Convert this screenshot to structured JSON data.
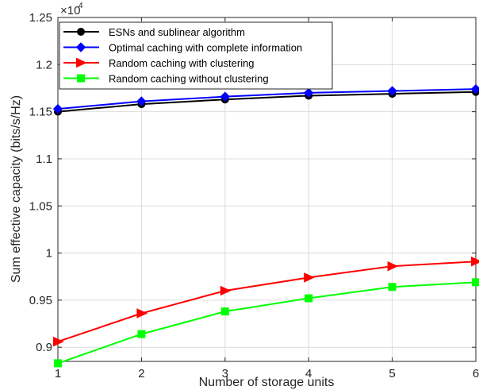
{
  "chart_data": {
    "type": "line",
    "xlabel": "Number of storage units",
    "ylabel": "Sum effective capacity (bits/s/Hz)",
    "y_multiplier": {
      "base": "×10",
      "exponent": "4"
    },
    "xlim": [
      1,
      6
    ],
    "ylim": [
      0.885,
      1.25
    ],
    "x_ticks": [
      1,
      2,
      3,
      4,
      5,
      6
    ],
    "x_tick_labels": [
      "1",
      "2",
      "3",
      "4",
      "5",
      "6"
    ],
    "y_ticks": [
      0.9,
      0.95,
      1.0,
      1.05,
      1.1,
      1.15,
      1.2,
      1.25
    ],
    "y_tick_labels": [
      "0.9",
      "0.95",
      "1",
      "1.05",
      "1.1",
      "1.15",
      "1.2",
      "1.25"
    ],
    "grid": true,
    "legend_position": "top-left",
    "x": [
      1,
      2,
      3,
      4,
      5,
      6
    ],
    "series": [
      {
        "name": "ESNs and sublinear algorithm",
        "color": "#000000",
        "marker": "circle",
        "values": [
          1.15,
          1.158,
          1.163,
          1.167,
          1.169,
          1.171
        ]
      },
      {
        "name": "Optimal caching with complete information",
        "color": "#0000ff",
        "marker": "diamond",
        "values": [
          1.153,
          1.161,
          1.166,
          1.17,
          1.172,
          1.174
        ]
      },
      {
        "name": "Random caching with clustering",
        "color": "#ff0000",
        "marker": "triangle-right",
        "values": [
          0.906,
          0.936,
          0.96,
          0.974,
          0.986,
          0.991
        ]
      },
      {
        "name": "Random caching without clustering",
        "color": "#00ff00",
        "marker": "square",
        "values": [
          0.883,
          0.914,
          0.938,
          0.952,
          0.964,
          0.969
        ]
      }
    ]
  }
}
